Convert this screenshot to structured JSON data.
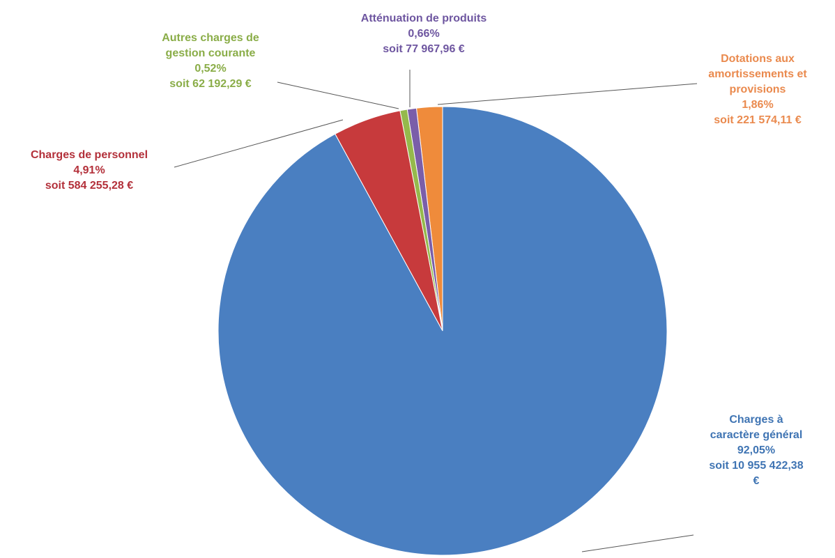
{
  "chart_data": {
    "type": "pie",
    "categories": [
      "Charges à caractère général",
      "Charges de personnel",
      "Autres charges de gestion courante",
      "Atténuation de produits",
      "Dotations aux amortissements et provisions"
    ],
    "values": [
      92.05,
      4.91,
      0.52,
      0.66,
      1.86
    ],
    "value_labels": [
      "92,05%",
      "4,91%",
      "0,52%",
      "0,66%",
      "1,86%"
    ],
    "amount_labels": [
      "soit 10 955 422,38 €",
      "soit 584 255,28 €",
      "soit 62 192,29 €",
      "soit 77 967,96 €",
      "soit 221 574,11 €"
    ],
    "colors": [
      "#4a7fc1",
      "#c73a3c",
      "#95b94c",
      "#7a5ea9",
      "#ef8b3b"
    ],
    "label_colors": [
      "#3f74b3",
      "#b3303a",
      "#8aad48",
      "#6e56a0",
      "#ea8a4e"
    ]
  }
}
